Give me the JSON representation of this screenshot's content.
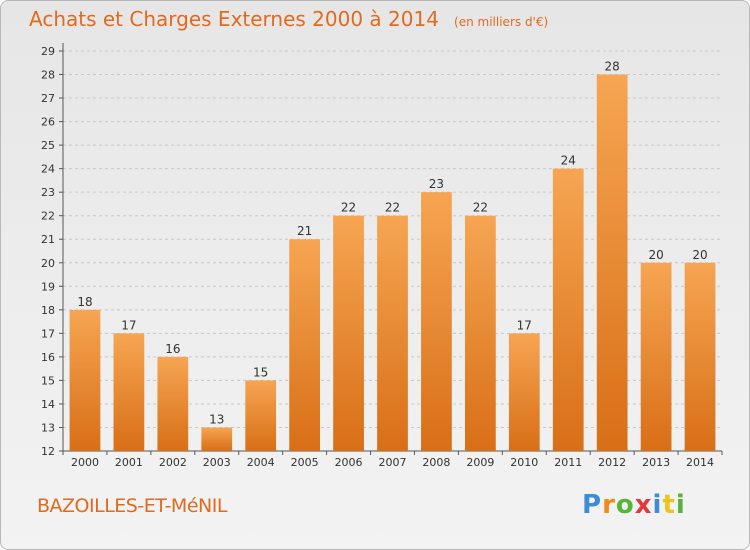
{
  "title": "Achats et Charges Externes 2000 à 2014",
  "unit": "(en milliers d'€)",
  "commune": "BAZOILLES-ET-MéNIL",
  "logo": [
    "P",
    "r",
    "o",
    "x",
    "i",
    "t",
    "i"
  ],
  "colors": {
    "bar_light": "#f6a552",
    "bar_dark": "#d86f17",
    "title": "#e16a1f"
  },
  "chart_data": {
    "type": "bar",
    "categories": [
      "2000",
      "2001",
      "2002",
      "2003",
      "2004",
      "2005",
      "2006",
      "2007",
      "2008",
      "2009",
      "2010",
      "2011",
      "2012",
      "2013",
      "2014"
    ],
    "values": [
      18,
      17,
      16,
      13,
      15,
      21,
      22,
      22,
      23,
      22,
      17,
      24,
      28,
      20,
      20
    ],
    "ylim": [
      12,
      29
    ],
    "yticks": [
      12,
      13,
      14,
      15,
      16,
      17,
      18,
      19,
      20,
      21,
      22,
      23,
      24,
      25,
      26,
      27,
      28,
      29
    ],
    "grid": true
  }
}
